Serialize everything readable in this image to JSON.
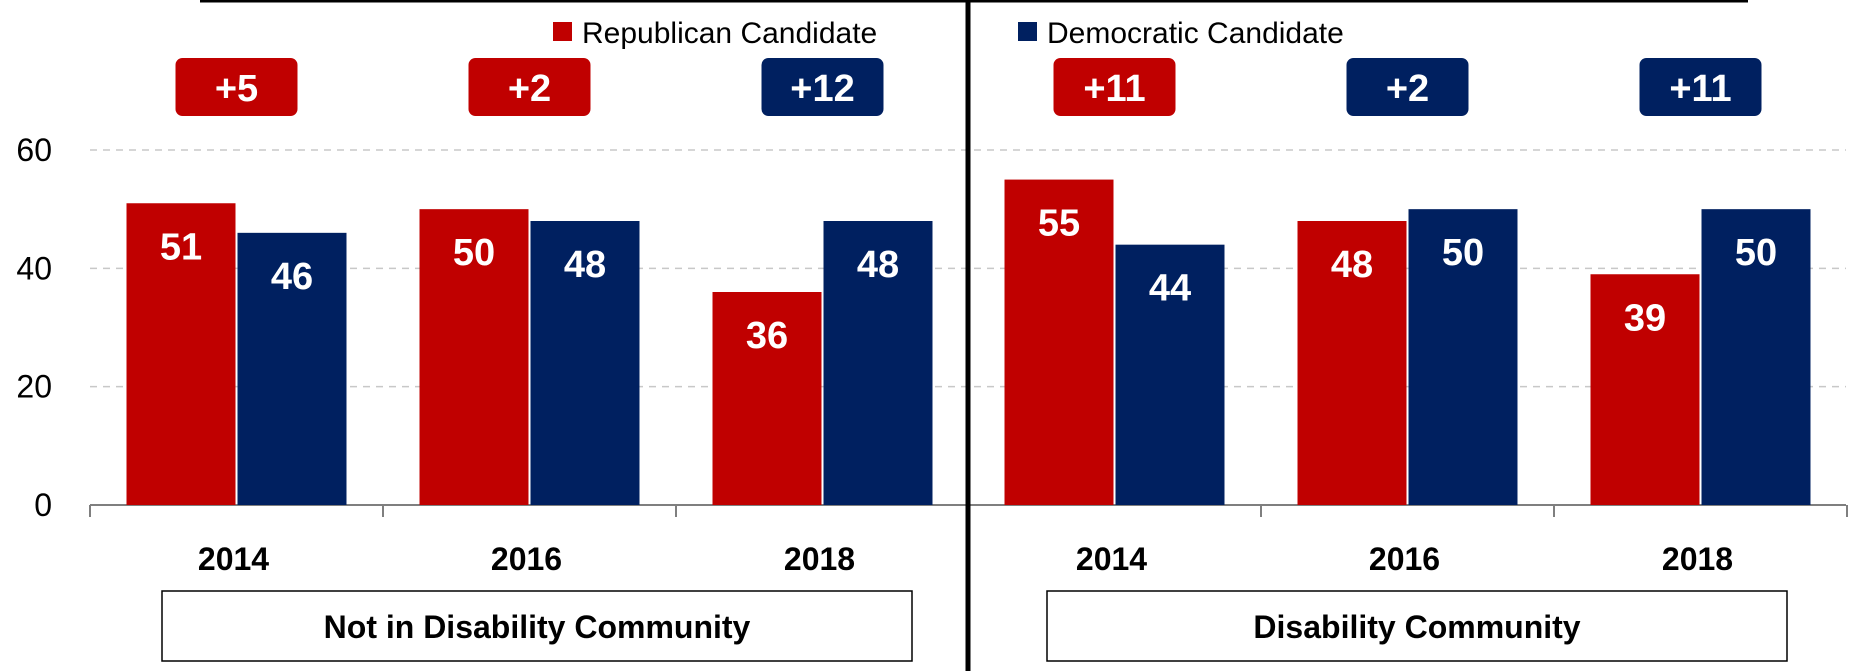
{
  "colors": {
    "republican": "#C00000",
    "democratic": "#002060",
    "grid": "#C8C8C8",
    "axis": "#7F7F7F",
    "divider": "#000000"
  },
  "chart_data": {
    "type": "bar",
    "title": "",
    "xlabel": "",
    "ylabel": "",
    "ylim": [
      0,
      60
    ],
    "yticks": [
      0,
      20,
      40,
      60
    ],
    "grid": true,
    "legend_position": "top",
    "series": [
      {
        "name": "Republican Candidate",
        "key": "republican"
      },
      {
        "name": "Democratic Candidate",
        "key": "democratic"
      }
    ],
    "panels": [
      {
        "group_label": "Not in Disability Community",
        "categories": [
          "2014",
          "2016",
          "2018"
        ],
        "republican": [
          51,
          50,
          36
        ],
        "democratic": [
          46,
          48,
          48
        ],
        "margins": [
          {
            "label": "+5",
            "party": "republican"
          },
          {
            "label": "+2",
            "party": "republican"
          },
          {
            "label": "+12",
            "party": "democratic"
          }
        ]
      },
      {
        "group_label": "Disability Community",
        "categories": [
          "2014",
          "2016",
          "2018"
        ],
        "republican": [
          55,
          48,
          39
        ],
        "democratic": [
          44,
          50,
          50
        ],
        "margins": [
          {
            "label": "+11",
            "party": "republican"
          },
          {
            "label": "+2",
            "party": "democratic"
          },
          {
            "label": "+11",
            "party": "democratic"
          }
        ]
      }
    ]
  }
}
